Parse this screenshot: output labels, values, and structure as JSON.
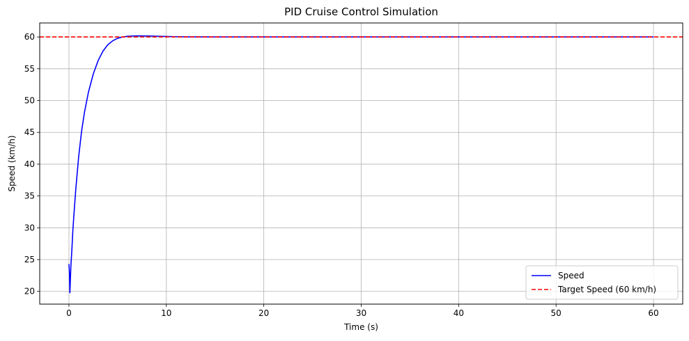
{
  "chart_data": {
    "type": "line",
    "title": "PID Cruise Control Simulation",
    "xlabel": "Time (s)",
    "ylabel": "Speed (km/h)",
    "xlim": [
      -3,
      63
    ],
    "ylim": [
      18,
      62.2
    ],
    "xticks": [
      0,
      10,
      20,
      30,
      40,
      50,
      60
    ],
    "yticks": [
      20,
      25,
      30,
      35,
      40,
      45,
      50,
      55,
      60
    ],
    "grid": true,
    "legend_position": "lower-right",
    "series": [
      {
        "name": "Speed",
        "color": "#0000ff",
        "style": "solid",
        "x": [
          0,
          0.05,
          0.1,
          0.2,
          0.3,
          0.4,
          0.5,
          0.7,
          1.0,
          1.3,
          1.6,
          2.0,
          2.5,
          3.0,
          3.5,
          4.0,
          4.5,
          5.0,
          5.5,
          6.0,
          6.5,
          7.0,
          8.0,
          9.0,
          10.0,
          11.0,
          12.0,
          15.0,
          20.0,
          30.0,
          40.0,
          50.0,
          60.0
        ],
        "y": [
          24.3,
          23.0,
          19.8,
          24.0,
          26.5,
          29.5,
          31.8,
          36.0,
          41.2,
          45.2,
          48.2,
          51.3,
          54.2,
          56.3,
          57.8,
          58.8,
          59.4,
          59.8,
          60.0,
          60.1,
          60.15,
          60.17,
          60.16,
          60.12,
          60.08,
          60.04,
          60.02,
          60.0,
          60.0,
          60.0,
          60.0,
          60.0,
          60.0
        ]
      },
      {
        "name": "Target Speed (60 km/h)",
        "color": "#ff0000",
        "style": "dashed",
        "x": [
          -3,
          63
        ],
        "y": [
          60,
          60
        ]
      }
    ]
  }
}
